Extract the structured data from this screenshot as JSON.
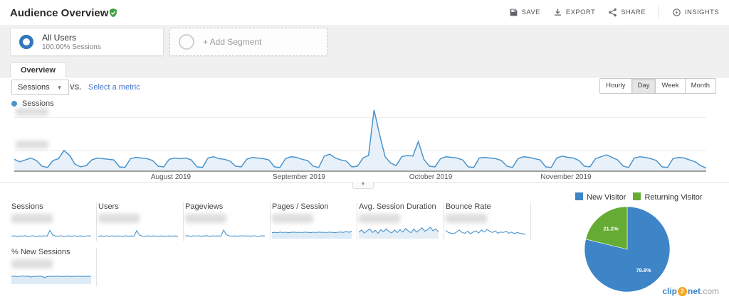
{
  "header": {
    "title": "Audience Overview",
    "actions": [
      {
        "label": "SAVE",
        "icon": "save-icon"
      },
      {
        "label": "EXPORT",
        "icon": "export-icon"
      },
      {
        "label": "SHARE",
        "icon": "share-icon"
      },
      {
        "label": "INSIGHTS",
        "icon": "insights-icon"
      }
    ],
    "date_range_redacted": true
  },
  "segments": {
    "active": {
      "title": "All Users",
      "subtitle": "100.00% Sessions"
    },
    "add": {
      "label": "+ Add Segment"
    }
  },
  "tabs": {
    "overview": "Overview"
  },
  "controls": {
    "metric_dropdown": "Sessions",
    "vs_label": "VS.",
    "compare_link": "Select a metric",
    "granularity": [
      "Hourly",
      "Day",
      "Week",
      "Month"
    ],
    "granularity_active": "Day"
  },
  "timeline_legend": {
    "label": "Sessions"
  },
  "metrics": {
    "cards": [
      {
        "label": "Sessions",
        "value_redacted": true
      },
      {
        "label": "Users",
        "value_redacted": true
      },
      {
        "label": "Pageviews",
        "value_redacted": true
      },
      {
        "label": "Pages / Session",
        "value_redacted": true
      },
      {
        "label": "Avg. Session Duration",
        "value_redacted": true
      },
      {
        "label": "Bounce Rate",
        "value_redacted": true
      },
      {
        "label": "% New Sessions",
        "value_redacted": true
      }
    ]
  },
  "watermark": {
    "clip": "clip",
    "two": "2",
    "net": "net",
    "dotcom": ".com"
  },
  "colors": {
    "line_blue": "#4a94cc",
    "area_fill": "#e8f1f9",
    "pie_blue": "#3d85c6",
    "pie_green": "#66ab33",
    "link_blue": "#4272c9",
    "verified_green": "#43a047"
  },
  "chart_data": [
    {
      "id": "sessions-timeline",
      "type": "area",
      "series_name": "Sessions",
      "granularity": "Day",
      "x_tick_labels": [
        "August 2019",
        "September 2019",
        "October 2019",
        "November 2019"
      ],
      "y_tick_labels_redacted": true,
      "ymax": 100,
      "color": "#4a94cc",
      "fill": "#e8f1f9",
      "stroke_width": 1.5,
      "values": [
        16,
        12,
        15,
        18,
        14,
        5,
        3,
        14,
        17,
        30,
        22,
        8,
        4,
        6,
        15,
        18,
        17,
        16,
        15,
        4,
        3,
        17,
        19,
        18,
        17,
        14,
        5,
        4,
        16,
        18,
        17,
        18,
        15,
        4,
        3,
        18,
        20,
        17,
        16,
        13,
        5,
        4,
        16,
        19,
        18,
        17,
        15,
        4,
        3,
        17,
        20,
        19,
        16,
        14,
        5,
        3,
        21,
        24,
        18,
        15,
        13,
        4,
        5,
        18,
        22,
        94,
        55,
        20,
        10,
        6,
        20,
        22,
        21,
        44,
        16,
        5,
        4,
        17,
        20,
        19,
        18,
        15,
        4,
        3,
        18,
        19,
        18,
        17,
        14,
        5,
        3,
        17,
        20,
        19,
        17,
        15,
        4,
        3,
        18,
        21,
        19,
        18,
        14,
        5,
        4,
        17,
        20,
        23,
        19,
        15,
        5,
        3,
        18,
        20,
        19,
        17,
        14,
        4,
        3,
        17,
        19,
        18,
        15,
        12,
        6,
        2
      ],
      "note": "relative daily values; numeric axis labels are blurred in the source image"
    },
    {
      "id": "spark-sessions",
      "type": "line",
      "metric": "Sessions",
      "color": "#4a94cc",
      "ymax": 100,
      "values": [
        12,
        15,
        10,
        14,
        12,
        16,
        11,
        13,
        15,
        10,
        14,
        12,
        15,
        13,
        60,
        22,
        14,
        12,
        15,
        11,
        13,
        14,
        12,
        15,
        11,
        14,
        12,
        13,
        15,
        12
      ]
    },
    {
      "id": "spark-users",
      "type": "line",
      "metric": "Users",
      "color": "#4a94cc",
      "ymax": 100,
      "values": [
        11,
        14,
        12,
        15,
        11,
        15,
        12,
        14,
        13,
        11,
        15,
        12,
        14,
        12,
        58,
        20,
        13,
        12,
        14,
        12,
        14,
        13,
        11,
        14,
        12,
        13,
        14,
        12,
        14,
        11
      ]
    },
    {
      "id": "spark-pageviews",
      "type": "line",
      "metric": "Pageviews",
      "color": "#4a94cc",
      "ymax": 100,
      "values": [
        13,
        16,
        11,
        15,
        13,
        15,
        12,
        14,
        16,
        11,
        15,
        13,
        14,
        12,
        62,
        24,
        15,
        13,
        14,
        12,
        14,
        15,
        13,
        14,
        12,
        15,
        13,
        12,
        16,
        13
      ]
    },
    {
      "id": "spark-pages-session",
      "type": "area",
      "metric": "Pages / Session",
      "color": "#4a94cc",
      "fill": "#ddebf7",
      "ymax": 100,
      "values": [
        40,
        43,
        41,
        45,
        42,
        44,
        41,
        43,
        45,
        42,
        44,
        42,
        45,
        43,
        41,
        44,
        42,
        45,
        43,
        44,
        42,
        45,
        43,
        41,
        44,
        46,
        43,
        50,
        44,
        52
      ]
    },
    {
      "id": "spark-session-duration",
      "type": "area",
      "metric": "Avg. Session Duration",
      "color": "#4a94cc",
      "fill": "#e4eef7",
      "ymax": 100,
      "values": [
        45,
        62,
        38,
        55,
        70,
        42,
        60,
        35,
        65,
        48,
        72,
        50,
        38,
        62,
        42,
        66,
        46,
        75,
        55,
        40,
        70,
        46,
        62,
        80,
        52,
        66,
        85,
        56,
        72,
        48
      ]
    },
    {
      "id": "spark-bounce-rate",
      "type": "line",
      "metric": "Bounce Rate",
      "color": "#4a94cc",
      "ymax": 100,
      "values": [
        58,
        42,
        36,
        32,
        46,
        62,
        42,
        36,
        52,
        32,
        46,
        56,
        38,
        62,
        46,
        66,
        52,
        42,
        56,
        36,
        46,
        42,
        52,
        36,
        46,
        32,
        42,
        36,
        32,
        26
      ]
    },
    {
      "id": "spark-new-sessions",
      "type": "area",
      "metric": "% New Sessions",
      "color": "#4a94cc",
      "fill": "#ddebf7",
      "ymax": 100,
      "values": [
        55,
        57,
        54,
        56,
        58,
        55,
        57,
        50,
        56,
        54,
        57,
        55,
        46,
        53,
        56,
        54,
        57,
        55,
        56,
        54,
        57,
        55,
        54,
        56,
        55,
        57,
        54,
        56,
        55,
        56
      ]
    },
    {
      "id": "visitor-type-pie",
      "type": "pie",
      "labels": [
        "New Visitor",
        "Returning Visitor"
      ],
      "values": [
        78.8,
        21.2
      ],
      "labels_pct": [
        "78.8%",
        "21.2%"
      ],
      "colors": [
        "#3d85c6",
        "#66ab33"
      ],
      "legend_position": "top"
    }
  ]
}
